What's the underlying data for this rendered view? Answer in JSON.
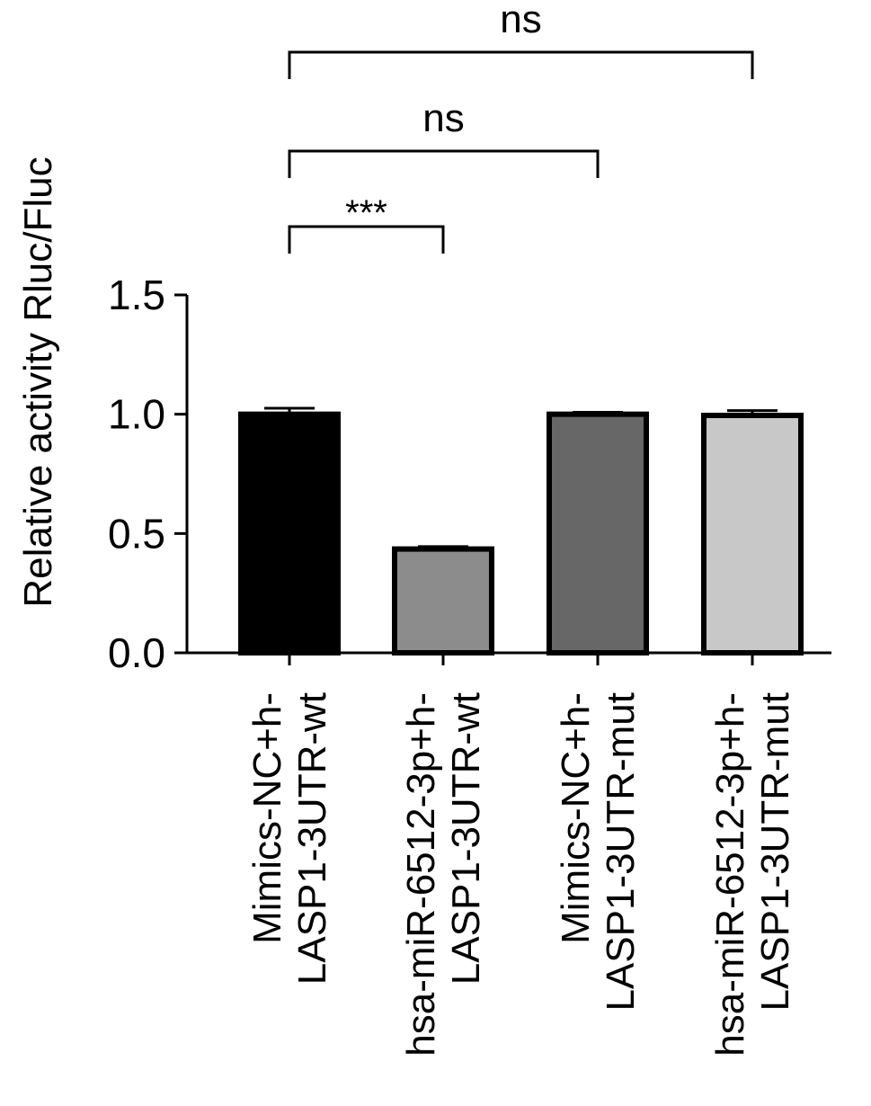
{
  "chart_data": {
    "type": "bar",
    "title": "",
    "ylabel": "Relative activity Rluc/Fluc",
    "xlabel": "",
    "ylim": [
      0,
      1.5
    ],
    "yticks": [
      "0.0",
      "0.5",
      "1.0",
      "1.5"
    ],
    "ytick_values": [
      0,
      0.5,
      1.0,
      1.5
    ],
    "categories": [
      [
        "Mimics-NC+h-",
        "LASP1-3UTR-wt"
      ],
      [
        "hsa-miR-6512-3p+h-",
        "LASP1-3UTR-wt"
      ],
      [
        "Mimics-NC+h-",
        "LASP1-3UTR-mut"
      ],
      [
        "hsa-miR-6512-3p+h-",
        "LASP1-3UTR-mut"
      ]
    ],
    "values": [
      1.0,
      0.435,
      1.0,
      0.995
    ],
    "errors": [
      0.025,
      0.01,
      0.008,
      0.02
    ],
    "colors": [
      "#000000",
      "#8c8c8c",
      "#676767",
      "#c8c8c8"
    ],
    "grid": false,
    "legend": "none",
    "significance": [
      {
        "from": 0,
        "to": 1,
        "label": "***"
      },
      {
        "from": 0,
        "to": 2,
        "label": "ns"
      },
      {
        "from": 0,
        "to": 3,
        "label": "ns"
      }
    ]
  }
}
